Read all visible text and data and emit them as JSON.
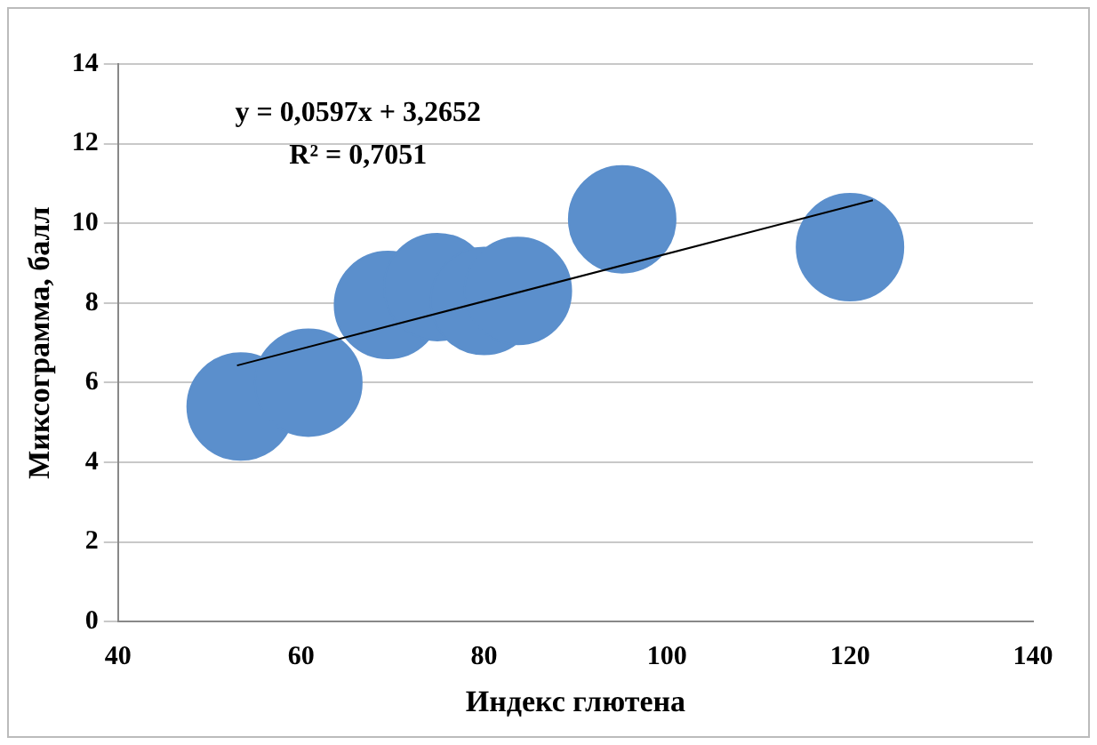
{
  "chart_data": {
    "type": "bubble",
    "xlabel": "Индекс глютена",
    "ylabel": "Миксограмма, балл",
    "annotations": [
      "y = 0,0597x + 3,2652",
      "R² = 0,7051"
    ],
    "series": [
      {
        "color": "#5b8fcc",
        "x": [
          53.4,
          60.8,
          69.5,
          74.9,
          80,
          83.7,
          95.1,
          120
        ],
        "values": [
          5.4,
          6.0,
          7.95,
          8.4,
          8.05,
          8.3,
          10.1,
          9.4
        ],
        "sizes": [
          1,
          1,
          1,
          1,
          1,
          1,
          1,
          1
        ]
      },
      {
        "type": "line",
        "color": "#000000",
        "x": [
          53,
          122.5
        ],
        "values": [
          6.43,
          10.58
        ]
      }
    ],
    "xlim": [
      40,
      140
    ],
    "xticks": [
      40,
      60,
      80,
      100,
      120,
      140
    ],
    "ylim": [
      0,
      14
    ],
    "yticks": [
      0,
      2,
      4,
      6,
      8,
      10,
      12,
      14
    ],
    "grid": "y"
  }
}
